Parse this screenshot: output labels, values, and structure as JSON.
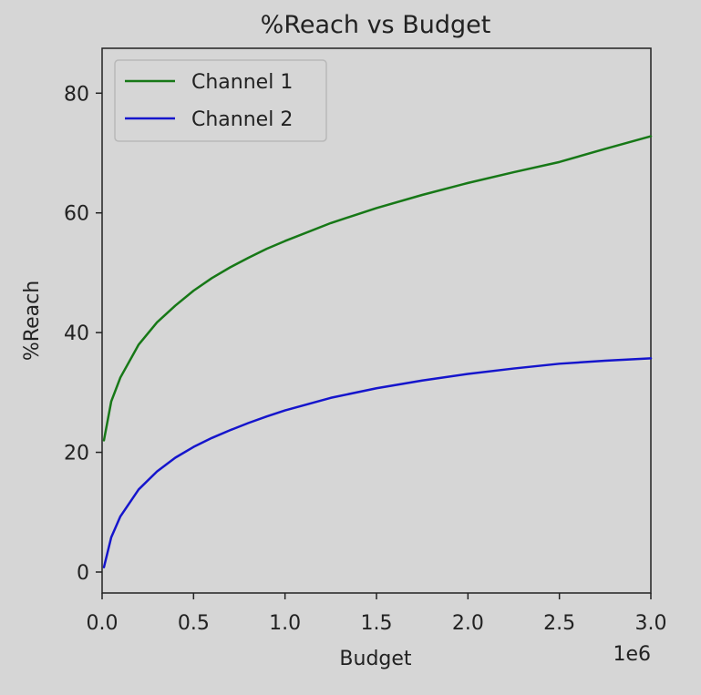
{
  "chart_data": {
    "type": "line",
    "title": "%Reach vs Budget",
    "xlabel": "Budget",
    "ylabel": "%Reach",
    "x_offset_label": "1e6",
    "xlim": [
      0,
      3000000
    ],
    "ylim": [
      -3.5,
      87.5
    ],
    "xticks": [
      0,
      500000,
      1000000,
      1500000,
      2000000,
      2500000,
      3000000
    ],
    "xtick_labels": [
      "0.0",
      "0.5",
      "1.0",
      "1.5",
      "2.0",
      "2.5",
      "3.0"
    ],
    "yticks": [
      0,
      20,
      40,
      60,
      80
    ],
    "ytick_labels": [
      "0",
      "20",
      "40",
      "60",
      "80"
    ],
    "grid": false,
    "legend_position": "top-left",
    "x": [
      10000,
      50000,
      100000,
      200000,
      300000,
      400000,
      500000,
      600000,
      700000,
      800000,
      900000,
      1000000,
      1250000,
      1500000,
      1750000,
      2000000,
      2250000,
      2500000,
      2750000,
      3000000
    ],
    "series": [
      {
        "name": "Channel 1",
        "color": "#177817",
        "values": [
          22.0,
          28.5,
          32.5,
          38.0,
          41.7,
          44.5,
          47.0,
          49.1,
          50.9,
          52.5,
          54.0,
          55.3,
          58.3,
          60.8,
          63.0,
          65.0,
          66.8,
          68.5,
          70.7,
          72.8
        ]
      },
      {
        "name": "Channel 2",
        "color": "#1515cc",
        "values": [
          0.8,
          5.8,
          9.3,
          13.8,
          16.8,
          19.1,
          20.9,
          22.4,
          23.7,
          24.9,
          26.0,
          27.0,
          29.1,
          30.7,
          32.0,
          33.1,
          34.0,
          34.8,
          35.3,
          35.7
        ]
      }
    ]
  }
}
